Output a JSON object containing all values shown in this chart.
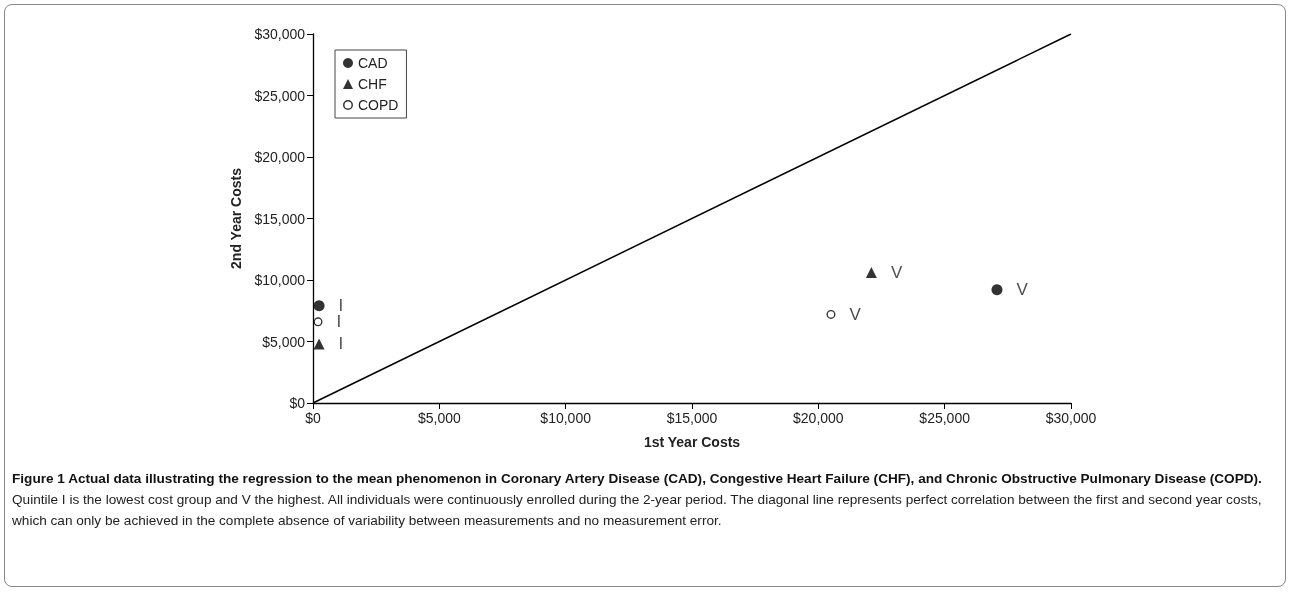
{
  "chart_data": {
    "type": "scatter",
    "title": "Figure 1 Actual data illustrating the regression to the mean phenomenon in Coronary Artery Disease (CAD), Congestive Heart Failure (CHF), and Chronic Obstructive Pulmonary Disease (COPD).",
    "annotations": [
      "Quintile I is the lowest cost group and V the highest. All individuals were continuously enrolled during the 2-year period. The diagonal line represents perfect correlation between the first and second year costs, which can only be achieved in the complete absence of variability between measurements and no measurement error."
    ],
    "xlabel": "1st Year Costs",
    "ylabel": "2nd Year Costs",
    "series": [
      {
        "name": "CAD",
        "color": "#000000",
        "marker": "circle",
        "x": [
          240,
          27070
        ],
        "values": [
          7900,
          9200
        ],
        "value_labels": [
          "I",
          "V"
        ]
      },
      {
        "name": "CHF",
        "color": "#000000",
        "marker": "triangle",
        "x": [
          240,
          22100
        ],
        "values": [
          4800,
          10600
        ],
        "value_labels": [
          "I",
          "V"
        ]
      },
      {
        "name": "COPD",
        "color": "#000000",
        "marker": "open circle",
        "x": [
          200,
          20500
        ],
        "values": [
          6600,
          7200
        ],
        "value_labels": [
          "I",
          "V"
        ]
      },
      {
        "type": "line",
        "color": "#000000",
        "marker": "none",
        "line_style": "solid",
        "x": [
          0,
          30000
        ],
        "values": [
          0,
          30000
        ]
      }
    ],
    "xlim": [
      0,
      30000
    ],
    "ylim": [
      0,
      30000
    ],
    "xticks": [
      {
        "value": 0,
        "label": "$0"
      },
      {
        "value": 5000,
        "label": "$5,000"
      },
      {
        "value": 10000,
        "label": "$10,000"
      },
      {
        "value": 15000,
        "label": "$15,000"
      },
      {
        "value": 20000,
        "label": "$20,000"
      },
      {
        "value": 25000,
        "label": "$25,000"
      },
      {
        "value": 30000,
        "label": "$30,000"
      }
    ],
    "yticks": [
      {
        "value": 0,
        "label": "$0"
      },
      {
        "value": 5000,
        "label": "$5,000"
      },
      {
        "value": 10000,
        "label": "$10,000"
      },
      {
        "value": 15000,
        "label": "$15,000"
      },
      {
        "value": 20000,
        "label": "$20,000"
      },
      {
        "value": 25000,
        "label": "$25,000"
      },
      {
        "value": 30000,
        "label": "$30,000"
      }
    ],
    "grid": false,
    "legend": "top left"
  }
}
